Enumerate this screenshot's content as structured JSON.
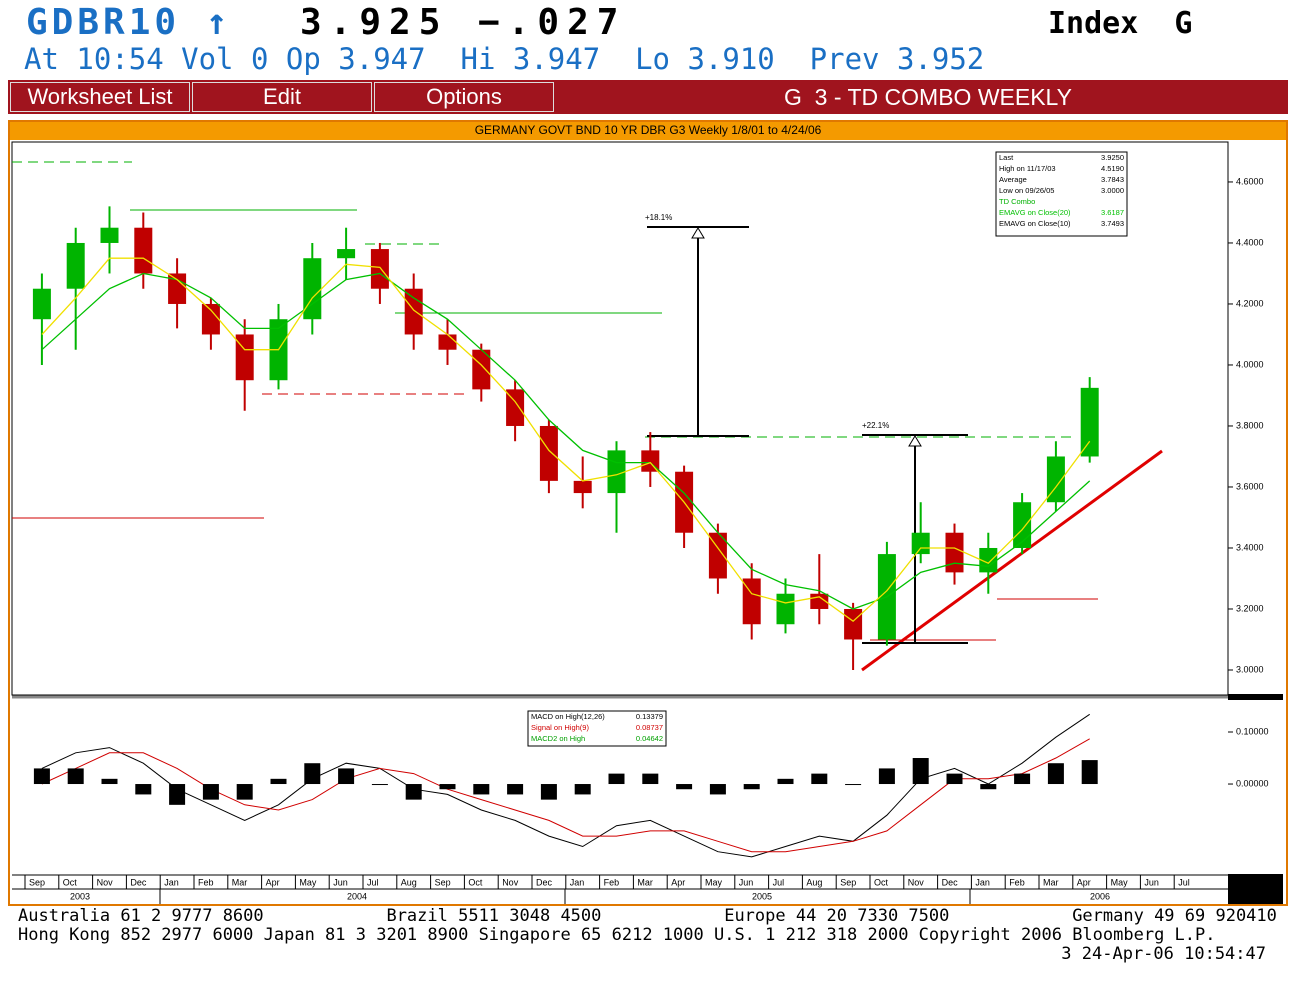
{
  "header": {
    "ticker": "GDBR10 ↑",
    "price": "3.925 −.027",
    "market": "Index  G",
    "quote": "At 10:54 Vol 0 Op 3.947  Hi 3.947  Lo 3.910  Prev 3.952"
  },
  "menu": {
    "items": [
      "Worksheet List",
      "Edit",
      "Options"
    ],
    "screen": "G  3 - TD COMBO WEEKLY"
  },
  "chart_data": [
    {
      "type": "candlestick",
      "title": "GERMANY GOVT BND 10 YR DBR G3 Weekly 1/8/01 to 4/24/06",
      "categories": [
        "Sep",
        "Oct",
        "Nov",
        "Dec",
        "Jan",
        "Feb",
        "Mar",
        "Apr",
        "May",
        "Jun",
        "Jul",
        "Aug",
        "Sep",
        "Oct",
        "Nov",
        "Dec",
        "Jan",
        "Feb",
        "Mar",
        "Apr",
        "May",
        "Jun",
        "Jul",
        "Aug",
        "Sep",
        "Oct",
        "Nov",
        "Dec",
        "Jan",
        "Feb",
        "Mar",
        "Apr",
        "May",
        "Jun",
        "Jul"
      ],
      "years": [
        "2003",
        "2004",
        "2005",
        "2006"
      ],
      "open": [
        4.15,
        4.25,
        4.4,
        4.45,
        4.3,
        4.2,
        4.1,
        3.95,
        4.15,
        4.35,
        4.38,
        4.25,
        4.1,
        4.05,
        3.92,
        3.8,
        3.62,
        3.58,
        3.72,
        3.65,
        3.45,
        3.3,
        3.15,
        3.25,
        3.2,
        3.1,
        3.38,
        3.45,
        3.32,
        3.4,
        3.55,
        3.7,
        null,
        null,
        null
      ],
      "high": [
        4.3,
        4.45,
        4.52,
        4.5,
        4.35,
        4.22,
        4.15,
        4.2,
        4.4,
        4.45,
        4.4,
        4.3,
        4.15,
        4.07,
        3.95,
        3.82,
        3.7,
        3.75,
        3.78,
        3.67,
        3.48,
        3.35,
        3.3,
        3.38,
        3.22,
        3.42,
        3.55,
        3.48,
        3.45,
        3.58,
        3.75,
        3.96,
        null,
        null,
        null
      ],
      "low": [
        4.0,
        4.05,
        4.3,
        4.25,
        4.12,
        4.05,
        3.85,
        3.92,
        4.1,
        4.28,
        4.2,
        4.05,
        4.0,
        3.88,
        3.75,
        3.58,
        3.53,
        3.45,
        3.6,
        3.4,
        3.25,
        3.1,
        3.12,
        3.15,
        3.0,
        3.08,
        3.35,
        3.28,
        3.25,
        3.38,
        3.52,
        3.68,
        null,
        null,
        null
      ],
      "close": [
        4.25,
        4.4,
        4.45,
        4.3,
        4.2,
        4.1,
        3.95,
        4.15,
        4.35,
        4.38,
        4.25,
        4.1,
        4.05,
        3.92,
        3.8,
        3.62,
        3.58,
        3.72,
        3.65,
        3.45,
        3.3,
        3.15,
        3.25,
        3.2,
        3.1,
        3.38,
        3.45,
        3.32,
        3.4,
        3.55,
        3.7,
        3.925,
        null,
        null,
        null
      ],
      "up_color": "#00b400",
      "down_color": "#c00000",
      "series": [
        {
          "name": "EMAVG on Close(20)",
          "color": "#00c000",
          "legend_color": "#00c000",
          "last": 3.6187,
          "values": [
            4.05,
            4.15,
            4.25,
            4.3,
            4.28,
            4.22,
            4.12,
            4.12,
            4.2,
            4.28,
            4.3,
            4.22,
            4.15,
            4.05,
            3.95,
            3.82,
            3.72,
            3.68,
            3.68,
            3.58,
            3.45,
            3.33,
            3.28,
            3.26,
            3.2,
            3.24,
            3.32,
            3.35,
            3.34,
            3.42,
            3.52,
            3.62,
            null,
            null,
            null
          ]
        },
        {
          "name": "EMAVG on Close(10)",
          "color": "#f0e000",
          "legend_color": "#000000",
          "last": 3.7493,
          "values": [
            4.1,
            4.22,
            4.35,
            4.35,
            4.28,
            4.18,
            4.05,
            4.05,
            4.22,
            4.33,
            4.32,
            4.18,
            4.1,
            4.0,
            3.88,
            3.72,
            3.62,
            3.64,
            3.68,
            3.55,
            3.4,
            3.25,
            3.22,
            3.24,
            3.16,
            3.26,
            3.4,
            3.4,
            3.35,
            3.46,
            3.6,
            3.75,
            null,
            null,
            null
          ]
        }
      ],
      "stats": [
        {
          "name": "Last",
          "value": {
            "value": 3.925,
            "label": "3.9250"
          }
        },
        {
          "name": "High on  11/17/03",
          "value": {
            "value": 4.519,
            "label": "4.5190"
          }
        },
        {
          "name": "Average",
          "value": 3.7843
        },
        {
          "name": "Low on  09/26/05",
          "value": {
            "value": 3.0,
            "label": "3.0000"
          }
        }
      ],
      "study": "TD Combo",
      "annotations": [
        "+18.1%",
        "+22.1%"
      ],
      "ylim": [
        2.918,
        4.731
      ],
      "yticks": [
        {
          "value": 3.0,
          "label": "3.0000"
        },
        {
          "value": 3.2,
          "label": "3.2000"
        },
        {
          "value": 3.4,
          "label": "3.4000"
        },
        {
          "value": 3.6,
          "label": "3.6000"
        },
        {
          "value": 3.8,
          "label": "3.8000"
        },
        {
          "value": 4.0,
          "label": "4.0000"
        },
        {
          "value": 4.2,
          "label": "4.2000"
        },
        {
          "value": 4.4,
          "label": "4.4000"
        },
        {
          "value": 4.6,
          "label": "4.6000"
        }
      ]
    },
    {
      "type": "macd",
      "series": [
        {
          "name": "MACD on High(12,26)",
          "style": "line",
          "color": "#000000",
          "legend_color": "#000000",
          "last": 0.13379,
          "values": [
            0.03,
            0.06,
            0.07,
            0.04,
            -0.01,
            -0.04,
            -0.07,
            -0.04,
            0.01,
            0.04,
            0.03,
            -0.01,
            -0.02,
            -0.05,
            -0.07,
            -0.1,
            -0.12,
            -0.08,
            -0.07,
            -0.1,
            -0.13,
            -0.14,
            -0.12,
            -0.1,
            -0.11,
            -0.06,
            0.01,
            0.03,
            0.0,
            0.04,
            0.09,
            0.134,
            null,
            null,
            null
          ]
        },
        {
          "name": "Signal on High(9)",
          "style": "line",
          "color": "#d00000",
          "legend_color": "#d00000",
          "last": 0.08737,
          "values": [
            0.0,
            0.03,
            0.06,
            0.06,
            0.03,
            -0.01,
            -0.04,
            -0.05,
            -0.03,
            0.01,
            0.03,
            0.02,
            -0.01,
            -0.03,
            -0.05,
            -0.07,
            -0.1,
            -0.1,
            -0.09,
            -0.09,
            -0.11,
            -0.13,
            -0.13,
            -0.12,
            -0.11,
            -0.09,
            -0.04,
            0.01,
            0.01,
            0.02,
            0.05,
            0.087,
            null,
            null,
            null
          ]
        },
        {
          "name": "MACD2 on High",
          "style": "bar",
          "color": "#000000",
          "legend_color": "#00a000",
          "last": 0.04642,
          "values": [
            0.03,
            0.03,
            0.01,
            -0.02,
            -0.04,
            -0.03,
            -0.03,
            0.01,
            0.04,
            0.03,
            0.0,
            -0.03,
            -0.01,
            -0.02,
            -0.02,
            -0.03,
            -0.02,
            0.02,
            0.02,
            -0.01,
            -0.02,
            -0.01,
            0.01,
            0.02,
            0.0,
            0.03,
            0.05,
            0.02,
            -0.01,
            0.02,
            0.04,
            0.046,
            null,
            null,
            null
          ]
        }
      ],
      "ylim": [
        -0.171,
        0.1615
      ],
      "yticks": [
        {
          "value": 0.1,
          "label": "0.10000"
        },
        {
          "value": 0.0,
          "label": "0.00000"
        }
      ]
    }
  ],
  "footer": [
    "Australia 61 2 9777 8600            Brazil 5511 3048 4500            Europe 44 20 7330 7500            Germany 49 69 920410",
    "Hong Kong 852 2977 6000 Japan 81 3 3201 8900 Singapore 65 6212 1000 U.S. 1 212 318 2000 Copyright 2006 Bloomberg L.P.",
    "3 24-Apr-06 10:54:47"
  ]
}
